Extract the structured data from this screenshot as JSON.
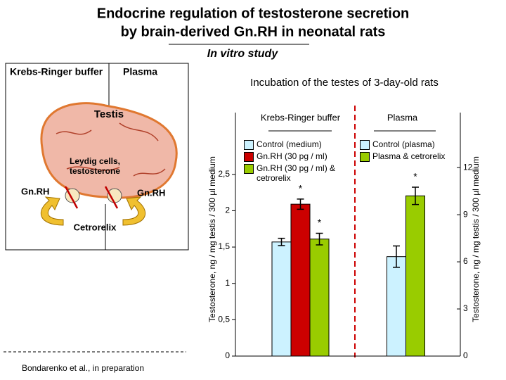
{
  "header": {
    "title_lines": [
      "Endocrine  regulation  of  testosterone  secretion",
      "by  brain-derived  Gn.RH  in  neonatal  rats"
    ],
    "subtitle": "In  vitro  study"
  },
  "diagram": {
    "left_label": "Krebs-Ringer buffer",
    "right_label": "Plasma",
    "organ": "Testis",
    "cells": "Leydig cells, testosterone",
    "hormone_left": "Gn.RH",
    "hormone_right": "Gn.RH",
    "blocker": "Cetrorelix"
  },
  "footer": "Bondarenko et al., in preparation",
  "chart_data": {
    "type": "bar",
    "title": "Incubation of the testes of 3-day-old rats",
    "categories": [
      "Krebs-Ringer buffer",
      "Plasma"
    ],
    "ylabel": "Testosterone,  ng / mg testis / 300 µl medium",
    "y2label": "Testosterone,  ng / mg testis  / 300 µl medium",
    "ylim": [
      0,
      3.35
    ],
    "yticks": [
      0,
      {
        "value": 0.5,
        "label": "0,5"
      },
      1,
      {
        "value": 1.5,
        "label": "1,5"
      },
      2,
      {
        "value": 2.5,
        "label": "2,5"
      }
    ],
    "y2lim": [
      0,
      15.5
    ],
    "y2ticks": [
      0,
      3,
      6,
      9,
      12
    ],
    "series": [
      {
        "name": "Control (medium)",
        "color": "#ccf2ff",
        "values": [
          1.57,
          null
        ],
        "errors": [
          0.05,
          null
        ],
        "significance": [
          null,
          null
        ]
      },
      {
        "name": "Gn.RH (30 pg / ml)",
        "color": "#cc0000",
        "values": [
          2.09,
          null
        ],
        "errors": [
          0.07,
          null
        ],
        "significance": [
          "*",
          null
        ]
      },
      {
        "name": "Gn.RH (30 pg / ml) & cetrorelix",
        "color": "#99cc00",
        "values": [
          1.61,
          null
        ],
        "errors": [
          0.08,
          null
        ],
        "significance": [
          "*",
          null
        ]
      },
      {
        "name": "Control (plasma)",
        "color": "#ccf2ff",
        "axis": "y2",
        "values": [
          null,
          6.33
        ],
        "errors": [
          null,
          0.68
        ],
        "significance": [
          null,
          null
        ]
      },
      {
        "name": "Plasma & cetrorelix",
        "color": "#99cc00",
        "axis": "y2",
        "values": [
          null,
          10.2
        ],
        "errors": [
          null,
          0.55
        ],
        "significance": [
          null,
          "*"
        ]
      }
    ]
  }
}
